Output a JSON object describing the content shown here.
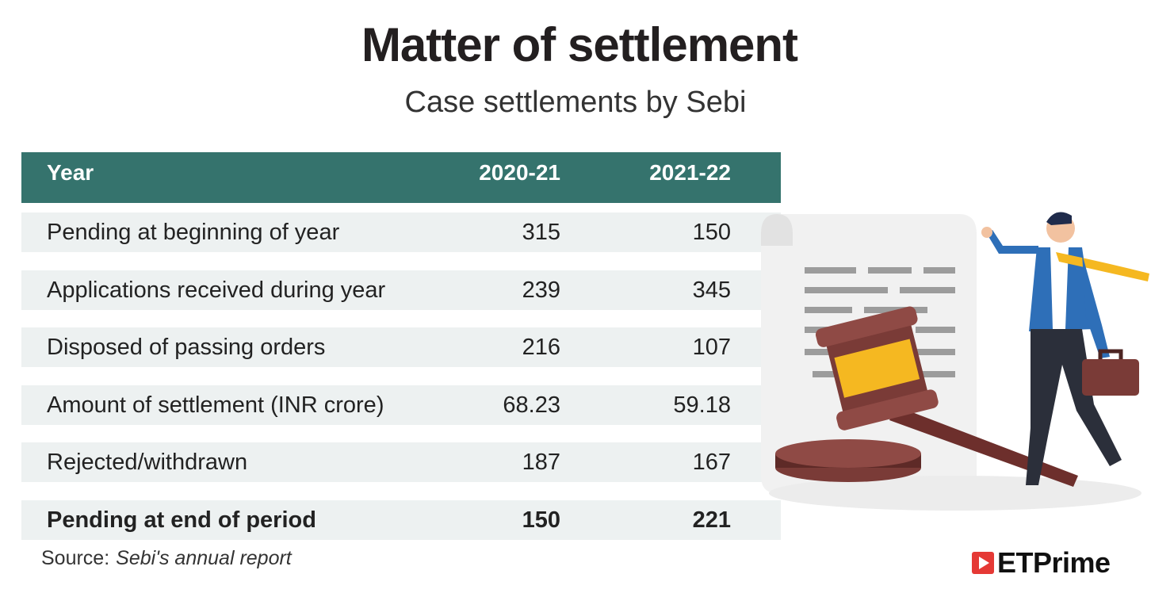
{
  "chart_data": {
    "type": "table",
    "title": "Matter of settlement",
    "subtitle": "Case settlements by Sebi",
    "columns": [
      "Year",
      "2020-21",
      "2021-22"
    ],
    "rows": [
      {
        "label": "Pending at beginning of year",
        "values": [
          "315",
          "150"
        ],
        "bold": false
      },
      {
        "label": "Applications received during year",
        "values": [
          "239",
          "345"
        ],
        "bold": false
      },
      {
        "label": "Disposed of passing orders",
        "values": [
          "216",
          "107"
        ],
        "bold": false
      },
      {
        "label": "Amount of settlement (INR crore)",
        "values": [
          "68.23",
          "59.18"
        ],
        "bold": false
      },
      {
        "label": "Rejected/withdrawn",
        "values": [
          "187",
          "167"
        ],
        "bold": false
      },
      {
        "label": "Pending at end of period",
        "values": [
          "150",
          "221"
        ],
        "bold": true
      }
    ],
    "header_color": "#35736d",
    "row_color": "#edf1f1"
  },
  "source": {
    "label": "Source:",
    "text": "Sebi's annual report"
  },
  "brand": {
    "name": "ETPrime",
    "icon": "play-icon",
    "color": "#e53935"
  },
  "illustration": {
    "icons": [
      "document-icon",
      "gavel-icon",
      "businessman-icon",
      "briefcase-icon"
    ]
  }
}
